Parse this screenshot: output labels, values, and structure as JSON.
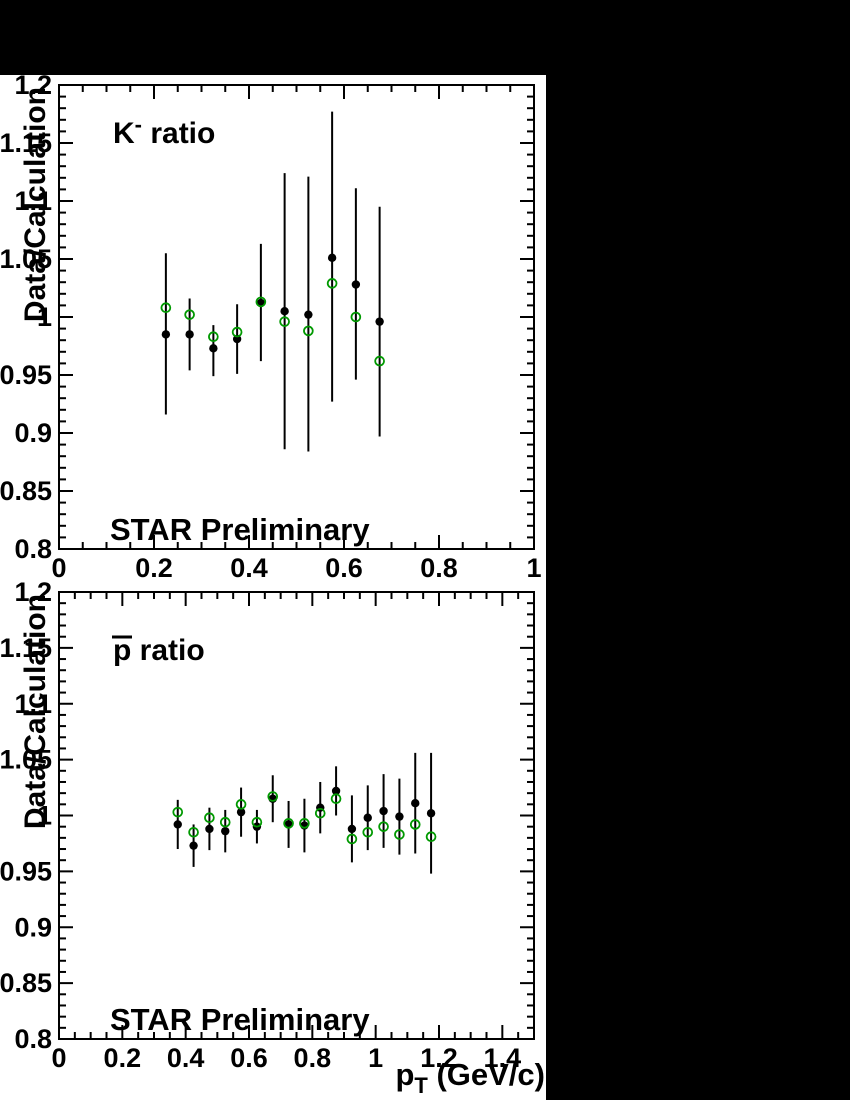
{
  "page": {
    "background_color": "#000000",
    "plot_background_color": "#ffffff"
  },
  "figure": {
    "y_axis_title": "Data/Calculation",
    "x_axis_title": {
      "base": "p",
      "sub": "T",
      "rest": " (GeV/c)"
    },
    "watermark": "STAR Preliminary",
    "colors": {
      "data_points": "#000000",
      "calc_points": "#009900",
      "frame": "#000000"
    }
  },
  "chart_data": [
    {
      "type": "scatter",
      "id": "kminus-ratio",
      "title": {
        "base": "K",
        "sup": "-",
        "rest": " ratio"
      },
      "ylabel": "Data/Calculation",
      "watermark": "STAR Preliminary",
      "xlim": [
        0,
        1
      ],
      "ylim": [
        0.8,
        1.2
      ],
      "x_major_step": 0.2,
      "x_minor_step": 0.05,
      "y_major_step": 0.05,
      "y_minor_step": 0.01,
      "grid": false,
      "x_tick_labels": [
        {
          "v": 0,
          "t": "0"
        },
        {
          "v": 0.2,
          "t": "0.2"
        },
        {
          "v": 0.4,
          "t": "0.4"
        },
        {
          "v": 0.6,
          "t": "0.6"
        },
        {
          "v": 0.8,
          "t": "0.8"
        },
        {
          "v": 1,
          "t": "1"
        }
      ],
      "y_tick_labels": [
        {
          "v": 0.8,
          "t": "0.8"
        },
        {
          "v": 0.85,
          "t": "0.85"
        },
        {
          "v": 0.9,
          "t": "0.9"
        },
        {
          "v": 0.95,
          "t": "0.95"
        },
        {
          "v": 1,
          "t": "1"
        },
        {
          "v": 1.05,
          "t": "1.05"
        },
        {
          "v": 1.1,
          "t": "1.1"
        },
        {
          "v": 1.15,
          "t": "1.15"
        },
        {
          "v": 1.2,
          "t": "1.2"
        }
      ],
      "x": [
        0.225,
        0.275,
        0.325,
        0.375,
        0.425,
        0.475,
        0.525,
        0.575,
        0.625,
        0.675
      ],
      "series": [
        {
          "name": "data-over-calculation",
          "marker": "filled-circle",
          "color": "#000000",
          "y": [
            0.985,
            0.985,
            0.973,
            0.981,
            1.012,
            1.005,
            1.002,
            1.051,
            1.028,
            0.996
          ],
          "err_top": [
            1.055,
            1.016,
            0.993,
            1.011,
            1.063,
            1.124,
            1.121,
            1.177,
            1.111,
            1.095
          ],
          "err_bot": [
            0.916,
            0.954,
            0.949,
            0.951,
            0.962,
            0.886,
            0.884,
            0.927,
            0.946,
            0.897
          ]
        },
        {
          "name": "calculation-variant",
          "marker": "open-circle",
          "color": "#009900",
          "y": [
            1.008,
            1.002,
            0.983,
            0.987,
            1.013,
            0.996,
            0.988,
            1.029,
            1.0,
            0.962
          ]
        }
      ]
    },
    {
      "type": "scatter",
      "id": "pbar-ratio",
      "title": {
        "base": "p",
        "overline": true,
        "rest": " ratio"
      },
      "ylabel": "Data/Calculation",
      "watermark": "STAR Preliminary",
      "xlim": [
        0,
        1.5
      ],
      "ylim": [
        0.8,
        1.2
      ],
      "x_major_step": 0.2,
      "x_minor_step": 0.05,
      "y_major_step": 0.05,
      "y_minor_step": 0.01,
      "grid": false,
      "x_tick_labels": [
        {
          "v": 0,
          "t": "0"
        },
        {
          "v": 0.2,
          "t": "0.2"
        },
        {
          "v": 0.4,
          "t": "0.4"
        },
        {
          "v": 0.6,
          "t": "0.6"
        },
        {
          "v": 0.8,
          "t": "0.8"
        },
        {
          "v": 1,
          "t": "1"
        },
        {
          "v": 1.2,
          "t": "1.2"
        },
        {
          "v": 1.4,
          "t": "1.4"
        }
      ],
      "y_tick_labels": [
        {
          "v": 0.8,
          "t": "0.8"
        },
        {
          "v": 0.85,
          "t": "0.85"
        },
        {
          "v": 0.9,
          "t": "0.9"
        },
        {
          "v": 0.95,
          "t": "0.95"
        },
        {
          "v": 1,
          "t": "1"
        },
        {
          "v": 1.05,
          "t": "1.05"
        },
        {
          "v": 1.1,
          "t": "1.1"
        },
        {
          "v": 1.15,
          "t": "1.15"
        },
        {
          "v": 1.2,
          "t": "1.2"
        }
      ],
      "x": [
        0.375,
        0.425,
        0.475,
        0.525,
        0.575,
        0.625,
        0.675,
        0.725,
        0.775,
        0.825,
        0.875,
        0.925,
        0.975,
        1.025,
        1.075,
        1.125,
        1.175
      ],
      "series": [
        {
          "name": "data-over-calculation",
          "marker": "filled-circle",
          "color": "#000000",
          "y": [
            0.992,
            0.973,
            0.988,
            0.986,
            1.003,
            0.99,
            1.015,
            0.992,
            0.991,
            1.007,
            1.022,
            0.988,
            0.998,
            1.004,
            0.999,
            1.011,
            1.002
          ],
          "err_top": [
            1.014,
            0.992,
            1.007,
            1.005,
            1.025,
            1.005,
            1.036,
            1.013,
            1.015,
            1.03,
            1.044,
            1.018,
            1.027,
            1.037,
            1.033,
            1.056,
            1.056
          ],
          "err_bot": [
            0.97,
            0.954,
            0.969,
            0.967,
            0.981,
            0.975,
            0.994,
            0.971,
            0.967,
            0.984,
            1.0,
            0.958,
            0.969,
            0.971,
            0.965,
            0.966,
            0.948
          ]
        },
        {
          "name": "calculation-variant",
          "marker": "open-circle",
          "color": "#009900",
          "y": [
            1.003,
            0.985,
            0.998,
            0.994,
            1.01,
            0.994,
            1.017,
            0.993,
            0.993,
            1.002,
            1.015,
            0.979,
            0.985,
            0.99,
            0.983,
            0.992,
            0.981
          ]
        }
      ]
    }
  ]
}
